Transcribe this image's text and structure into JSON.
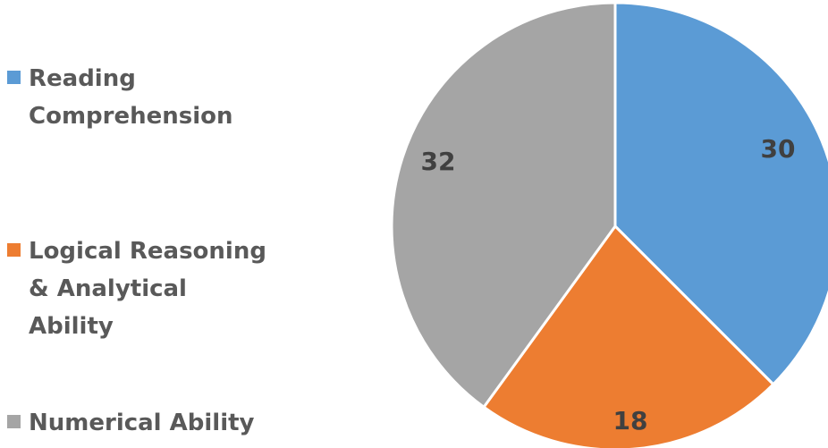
{
  "chart_data": {
    "type": "pie",
    "title": "",
    "legend_position": "left",
    "slices": [
      {
        "label": "Reading Comprehension",
        "value": 30,
        "value_label": "30",
        "color": "#5B9BD5"
      },
      {
        "label": "Logical Reasoning & Analytical Ability",
        "value": 18,
        "value_label": "18",
        "color": "#ED7D31"
      },
      {
        "label": "Numerical Ability",
        "value": 32,
        "value_label": "32",
        "color": "#A5A5A5"
      }
    ]
  }
}
